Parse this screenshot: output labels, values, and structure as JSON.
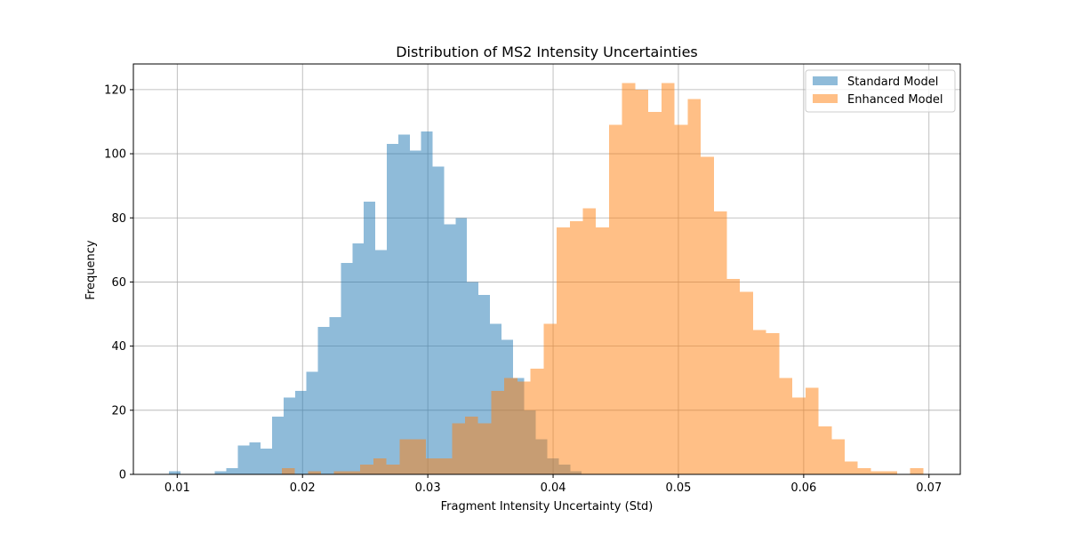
{
  "chart_data": {
    "type": "histogram",
    "title": "Distribution of MS2 Intensity Uncertainties",
    "xlabel": "Fragment Intensity Uncertainty (Std)",
    "ylabel": "Frequency",
    "xlim": [
      0.0065,
      0.0725
    ],
    "ylim": [
      0,
      128
    ],
    "xticks": [
      0.01,
      0.02,
      0.03,
      0.04,
      0.05,
      0.06,
      0.07
    ],
    "xtick_labels": [
      "0.01",
      "0.02",
      "0.03",
      "0.04",
      "0.05",
      "0.06",
      "0.07"
    ],
    "yticks": [
      0,
      20,
      40,
      60,
      80,
      100,
      120
    ],
    "ytick_labels": [
      "0",
      "20",
      "40",
      "60",
      "80",
      "100",
      "120"
    ],
    "grid": true,
    "legend_position": "top-right",
    "series": [
      {
        "name": "Standard Model",
        "color": "#1f77b4",
        "alpha": 0.5,
        "bin_start": 0.00934,
        "bin_width": 0.000915,
        "counts": [
          1,
          0,
          0,
          0,
          1,
          2,
          9,
          10,
          8,
          18,
          24,
          26,
          32,
          46,
          49,
          66,
          72,
          85,
          70,
          103,
          106,
          101,
          107,
          96,
          78,
          80,
          60,
          56,
          47,
          42,
          30,
          20,
          11,
          5,
          3,
          1
        ]
      },
      {
        "name": "Enhanced Model",
        "color": "#ff7f0e",
        "alpha": 0.5,
        "bin_start": 0.01834,
        "bin_width": 0.001045,
        "counts": [
          2,
          0,
          1,
          0,
          1,
          1,
          3,
          5,
          3,
          11,
          11,
          5,
          5,
          16,
          18,
          16,
          26,
          30,
          29,
          33,
          47,
          77,
          79,
          83,
          77,
          109,
          122,
          120,
          113,
          122,
          109,
          117,
          99,
          82,
          61,
          57,
          45,
          44,
          30,
          24,
          27,
          15,
          11,
          4,
          2,
          1,
          1,
          0,
          2
        ]
      }
    ]
  }
}
